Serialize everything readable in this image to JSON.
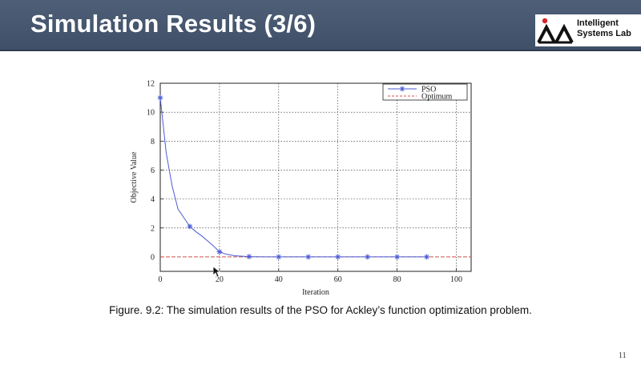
{
  "slide": {
    "title": "Simulation Results (3/6)",
    "logo_line1": "Intelligent",
    "logo_line2": "Systems Lab",
    "caption": "Figure. 9.2: The simulation results of the PSO for Ackley’s function optimization problem.",
    "page_number": "11",
    "colors": {
      "title_bar": "#455670",
      "logo_red": "#d9232a"
    }
  },
  "chart_data": {
    "type": "line",
    "xlabel": "Iteration",
    "ylabel": "Objective Value",
    "xlim": [
      0,
      105
    ],
    "ylim": [
      -1,
      12
    ],
    "xticks": [
      0,
      20,
      40,
      60,
      80,
      100
    ],
    "yticks": [
      0,
      2,
      4,
      6,
      8,
      10,
      12
    ],
    "grid": true,
    "legend_position": "top-right",
    "series": [
      {
        "name": "PSO",
        "color": "#4a5bd6",
        "style": "solid-with-star-markers",
        "x": [
          0,
          2,
          4,
          6,
          8,
          10,
          12,
          14,
          16,
          18,
          20,
          22,
          25,
          30,
          35,
          40,
          50,
          60,
          70,
          80,
          90
        ],
        "y": [
          11.0,
          7.2,
          4.9,
          3.3,
          2.7,
          2.1,
          1.75,
          1.45,
          1.1,
          0.75,
          0.35,
          0.2,
          0.08,
          0.02,
          0.0,
          0.0,
          0.0,
          0.0,
          0.0,
          0.0,
          0.0
        ],
        "marker_x": [
          0,
          10,
          20,
          30,
          40,
          50,
          60,
          70,
          80,
          90
        ],
        "marker_y": [
          11.0,
          2.1,
          0.35,
          0.02,
          0.0,
          0.0,
          0.0,
          0.0,
          0.0,
          0.0
        ]
      },
      {
        "name": "Optimum",
        "color": "#e0504a",
        "style": "dashed",
        "x": [
          0,
          105
        ],
        "y": [
          0,
          0
        ]
      }
    ]
  }
}
